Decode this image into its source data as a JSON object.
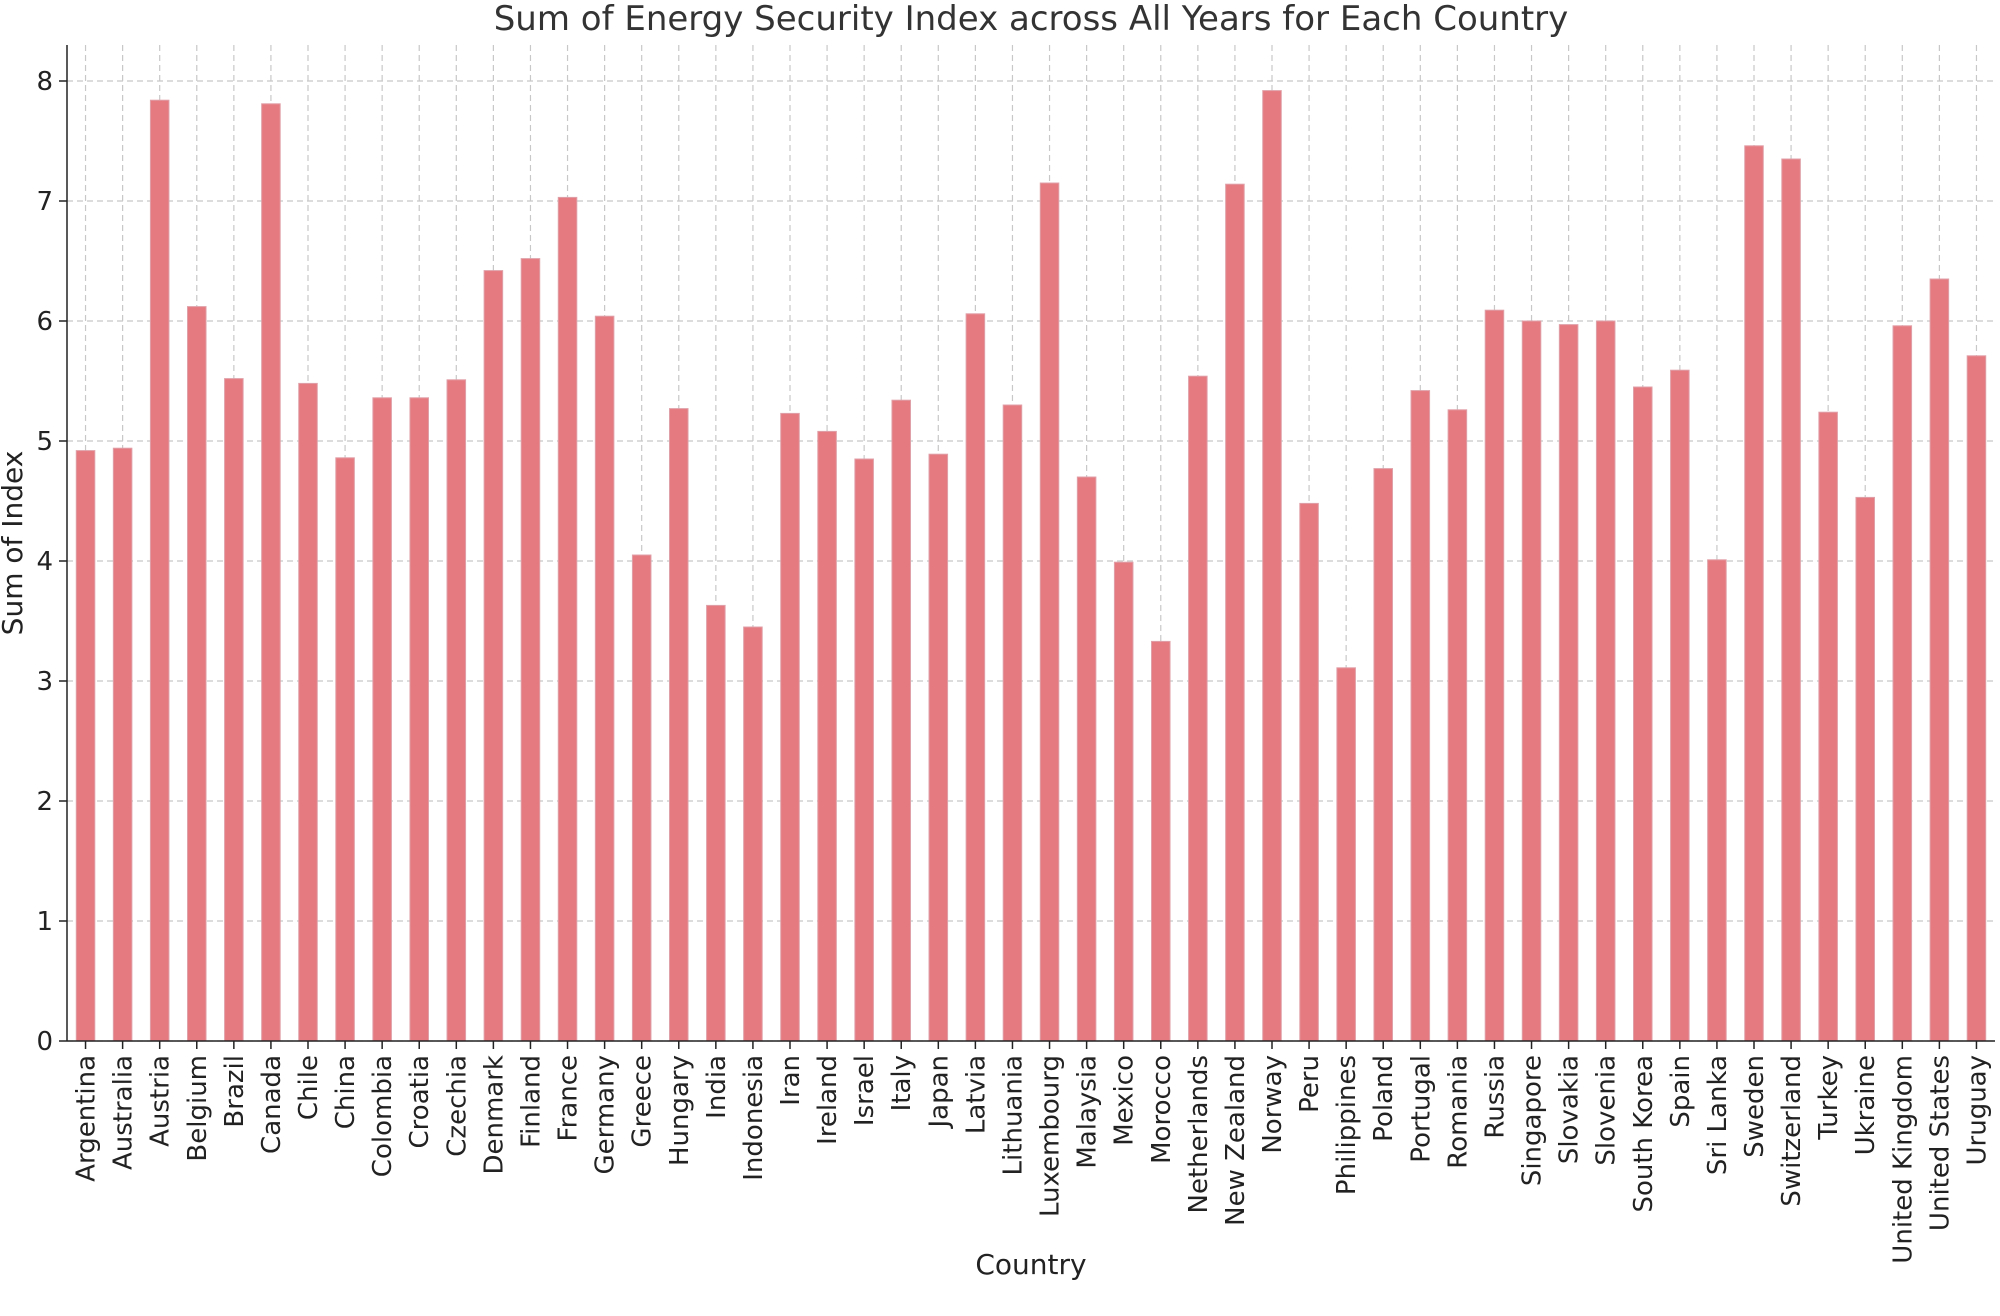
{
  "chart_data": {
    "type": "bar",
    "title": "Sum of Energy Security Index across All Years for Each Country",
    "xlabel": "Country",
    "ylabel": "Sum of Index",
    "ylim": [
      0,
      8.3
    ],
    "yticks": [
      0,
      1,
      2,
      3,
      4,
      5,
      6,
      7,
      8
    ],
    "grid": true,
    "bar_color": "#E57A80",
    "categories": [
      "Argentina",
      "Australia",
      "Austria",
      "Belgium",
      "Brazil",
      "Canada",
      "Chile",
      "China",
      "Colombia",
      "Croatia",
      "Czechia",
      "Denmark",
      "Finland",
      "France",
      "Germany",
      "Greece",
      "Hungary",
      "India",
      "Indonesia",
      "Iran",
      "Ireland",
      "Israel",
      "Italy",
      "Japan",
      "Latvia",
      "Lithuania",
      "Luxembourg",
      "Malaysia",
      "Mexico",
      "Morocco",
      "Netherlands",
      "New Zealand",
      "Norway",
      "Peru",
      "Philippines",
      "Poland",
      "Portugal",
      "Romania",
      "Russia",
      "Singapore",
      "Slovakia",
      "Slovenia",
      "South Korea",
      "Spain",
      "Sri Lanka",
      "Sweden",
      "Switzerland",
      "Turkey",
      "Ukraine",
      "United Kingdom",
      "United States",
      "Uruguay"
    ],
    "values": [
      4.92,
      4.94,
      7.84,
      6.12,
      5.52,
      7.81,
      5.48,
      4.86,
      5.36,
      5.36,
      5.51,
      6.42,
      6.52,
      7.03,
      6.04,
      4.05,
      5.27,
      3.63,
      3.45,
      5.23,
      5.08,
      4.85,
      5.34,
      4.89,
      6.06,
      5.3,
      7.15,
      4.7,
      3.99,
      3.33,
      5.54,
      7.14,
      7.92,
      4.48,
      3.11,
      4.77,
      5.42,
      5.26,
      6.09,
      6.0,
      5.97,
      6.0,
      5.45,
      5.59,
      4.01,
      7.46,
      7.35,
      5.24,
      4.53,
      5.96,
      6.35,
      5.71
    ]
  }
}
